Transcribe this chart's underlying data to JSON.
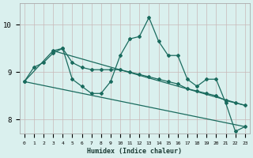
{
  "xlabel": "Humidex (Indice chaleur)",
  "bg_color": "#daf0ee",
  "line_color": "#1a6b5e",
  "grid_color": "#c8b8b8",
  "xlim": [
    -0.5,
    23.5
  ],
  "ylim": [
    7.7,
    10.45
  ],
  "yticks": [
    8,
    9,
    10
  ],
  "xtick_labels": [
    "0",
    "1",
    "2",
    "3",
    "4",
    "5",
    "6",
    "7",
    "8",
    "9",
    "10",
    "11",
    "12",
    "13",
    "14",
    "15",
    "16",
    "17",
    "18",
    "19",
    "20",
    "21",
    "22",
    "23"
  ],
  "line_jagged": {
    "x": [
      0,
      1,
      2,
      3,
      4,
      5,
      6,
      7,
      8,
      9,
      10,
      11,
      12,
      13,
      14,
      15,
      16,
      17,
      18,
      19,
      20,
      21,
      22,
      23
    ],
    "y": [
      8.8,
      9.1,
      9.2,
      9.4,
      9.5,
      8.85,
      8.7,
      8.55,
      8.55,
      8.8,
      9.35,
      9.7,
      9.75,
      10.15,
      9.65,
      9.35,
      9.35,
      8.85,
      8.7,
      8.85,
      8.85,
      8.35,
      7.75,
      7.85
    ]
  },
  "line_smooth": {
    "x": [
      0,
      3,
      4,
      5,
      6,
      7,
      8,
      9,
      10,
      11,
      12,
      13,
      14,
      15,
      16,
      17,
      18,
      19,
      20,
      21,
      22,
      23
    ],
    "y": [
      8.8,
      9.45,
      9.5,
      9.2,
      9.1,
      9.05,
      9.05,
      9.05,
      9.05,
      9.0,
      8.95,
      8.9,
      8.85,
      8.8,
      8.75,
      8.65,
      8.6,
      8.55,
      8.5,
      8.4,
      8.35,
      8.3
    ]
  },
  "line_straight1": {
    "x": [
      0,
      23
    ],
    "y": [
      8.8,
      7.85
    ]
  },
  "line_straight2": {
    "x": [
      3,
      23
    ],
    "y": [
      9.45,
      8.3
    ]
  }
}
